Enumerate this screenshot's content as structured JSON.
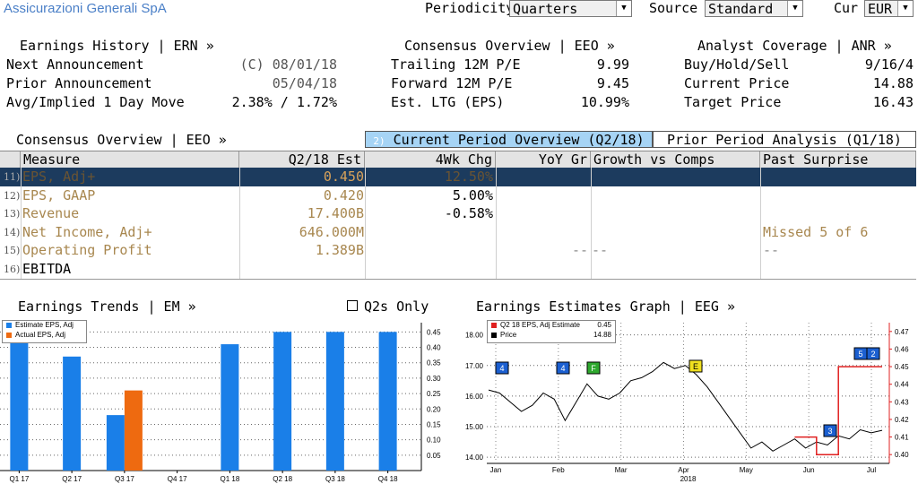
{
  "header": {
    "title": "Assicurazioni Generali SpA",
    "periodicity_label": "Periodicity",
    "periodicity_value": "Quarters",
    "source_label": "Source",
    "source_value": "Standard",
    "cur_label": "Cur",
    "cur_value": "EUR"
  },
  "earnings_history": {
    "heading": "Earnings History | ERN »",
    "rows": [
      {
        "label": "Next Announcement",
        "value": "(C) 08/01/18"
      },
      {
        "label": "Prior Announcement",
        "value": "05/04/18"
      },
      {
        "label": "Avg/Implied 1 Day Move",
        "value": "2.38% / 1.72%"
      }
    ]
  },
  "consensus_top": {
    "heading": "Consensus Overview | EEO »",
    "rows": [
      {
        "label": "Trailing 12M P/E",
        "value": "9.99"
      },
      {
        "label": "Forward 12M P/E",
        "value": "9.45"
      },
      {
        "label": "Est. LTG (EPS)",
        "value": "10.99%"
      }
    ]
  },
  "analyst_coverage": {
    "heading": "Analyst Coverage | ANR »",
    "rows": [
      {
        "label": "Buy/Hold/Sell",
        "value": "9/16/4"
      },
      {
        "label": "Current Price",
        "value": "14.88"
      },
      {
        "label": "Target Price",
        "value": "16.43"
      }
    ]
  },
  "table": {
    "heading": "Consensus Overview | EEO »",
    "tab_current_num": "2)",
    "tab_current": "Current Period Overview (Q2/18)",
    "tab_prior": "Prior Period Analysis (Q1/18)",
    "columns": [
      "Measure",
      "Q2/18 Est",
      "4Wk Chg",
      "YoY Gr",
      "Growth vs Comps",
      "Past Surprise"
    ],
    "rows": [
      {
        "num": "11)",
        "measure": "EPS, Adj+",
        "est": "0.450",
        "chg": "12.50%",
        "yoy": "",
        "comps": "",
        "surprise": ""
      },
      {
        "num": "12)",
        "measure": "EPS, GAAP",
        "est": "0.420",
        "chg": "5.00%",
        "yoy": "",
        "comps": "",
        "surprise": ""
      },
      {
        "num": "13)",
        "measure": "Revenue",
        "est": "17.400B",
        "chg": "-0.58%",
        "yoy": "",
        "comps": "",
        "surprise": ""
      },
      {
        "num": "14)",
        "measure": "Net Income, Adj+",
        "est": "646.000M",
        "chg": "",
        "yoy": "",
        "comps": "",
        "surprise": "Missed 5 of 6"
      },
      {
        "num": "15)",
        "measure": "Operating Profit",
        "est": "1.389B",
        "chg": "",
        "yoy": "--",
        "comps": "--",
        "surprise": "--"
      },
      {
        "num": "16)",
        "measure": "EBITDA",
        "est": "",
        "chg": "",
        "yoy": "",
        "comps": "",
        "surprise": ""
      }
    ]
  },
  "trends": {
    "heading": "Earnings Trends | EM »",
    "q2s_label": "Q2s Only"
  },
  "estimates_graph": {
    "heading": "Earnings Estimates Graph | EEG »",
    "x_year": "2018"
  },
  "colors": {
    "estimate": "#1a7fe8",
    "actual": "#ee6a10",
    "selected_row": "#1c3b5e",
    "tab_active": "#a6d4f5",
    "price": "#000000",
    "estimate_line": "#e02020",
    "gold_text": "#a8874f"
  },
  "chart_data": [
    {
      "type": "bar",
      "categories": [
        "Q1 17",
        "Q2 17",
        "Q3 17",
        "Q4 17",
        "Q1 18",
        "Q2 18",
        "Q3 18",
        "Q4 18"
      ],
      "series": [
        {
          "name": "Estimate EPS, Adj",
          "values": [
            0.43,
            0.37,
            0.18,
            null,
            0.41,
            0.45,
            0.45,
            0.45
          ]
        },
        {
          "name": "Actual EPS, Adj",
          "values": [
            null,
            null,
            0.26,
            null,
            null,
            null,
            null,
            null
          ]
        }
      ],
      "yticks": [
        "0.05",
        "0.10",
        "0.15",
        "0.20",
        "0.25",
        "0.30",
        "0.35",
        "0.40",
        "0.45"
      ],
      "ylim": [
        0,
        0.48
      ],
      "legend": "top-left",
      "grid": true
    },
    {
      "type": "line",
      "x_labels": [
        "Jan",
        "Feb",
        "Mar",
        "Apr",
        "May",
        "Jun",
        "Jul"
      ],
      "year": "2018",
      "series": [
        {
          "name": "Price",
          "value": "14.88",
          "values": [
            16.2,
            16.1,
            15.8,
            15.5,
            15.7,
            16.1,
            15.9,
            15.2,
            15.8,
            16.4,
            16.0,
            15.9,
            16.1,
            16.5,
            16.6,
            16.8,
            17.1,
            16.9,
            17.0,
            16.7,
            16.3,
            15.8,
            15.3,
            14.8,
            14.3,
            14.5,
            14.2,
            14.4,
            14.6,
            14.3,
            14.5,
            14.4,
            14.7,
            14.6,
            14.9,
            14.8,
            14.88
          ]
        },
        {
          "name": "Q2 18 EPS, Adj Estimate",
          "value": "0.45",
          "values": [
            null,
            null,
            null,
            null,
            null,
            null,
            null,
            null,
            null,
            null,
            null,
            null,
            null,
            null,
            null,
            null,
            null,
            null,
            null,
            null,
            null,
            null,
            null,
            null,
            null,
            null,
            null,
            null,
            0.41,
            0.41,
            0.4,
            0.4,
            0.45,
            0.45,
            0.45,
            0.45,
            0.45
          ]
        }
      ],
      "left_axis": [
        "14.00",
        "15.00",
        "16.00",
        "17.00",
        "18.00"
      ],
      "left_ylim": [
        13.8,
        18.4
      ],
      "right_axis": [
        "0.40",
        "0.41",
        "0.42",
        "0.43",
        "0.44",
        "0.45",
        "0.46",
        "0.47"
      ],
      "right_ylim": [
        0.395,
        0.475
      ],
      "markers": [
        {
          "label": "4",
          "color": "#1b5fd0"
        },
        {
          "label": "4",
          "color": "#1b5fd0"
        },
        {
          "label": "F",
          "color": "#2ea82e"
        },
        {
          "label": "E",
          "color": "#f0e020"
        },
        {
          "label": "3",
          "color": "#1b5fd0"
        },
        {
          "label": "5",
          "color": "#1b5fd0"
        },
        {
          "label": "2",
          "color": "#1b5fd0"
        }
      ]
    }
  ]
}
